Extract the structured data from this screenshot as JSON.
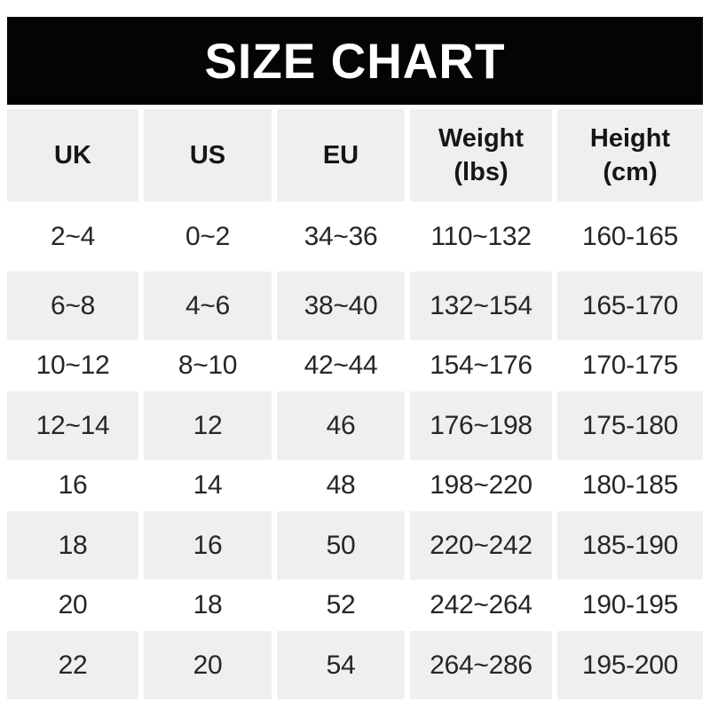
{
  "title": "SIZE CHART",
  "colors": {
    "banner_bg": "#040404",
    "banner_text": "#ffffff",
    "row_alt_bg": "#f0efee",
    "data_text": "#262626",
    "header_text": "#161616",
    "page_bg": "#ffffff"
  },
  "chart_data": {
    "type": "table",
    "title": "SIZE CHART",
    "columns": [
      "UK",
      "US",
      "EU",
      "Weight (lbs)",
      "Height (cm)"
    ],
    "header": [
      {
        "line1": "UK",
        "line2": ""
      },
      {
        "line1": "US",
        "line2": ""
      },
      {
        "line1": "EU",
        "line2": ""
      },
      {
        "line1": "Weight",
        "line2": "(lbs)"
      },
      {
        "line1": "Height",
        "line2": "(cm)"
      }
    ],
    "rows": [
      [
        "2~4",
        "0~2",
        "34~36",
        "110~132",
        "160-165"
      ],
      [
        "6~8",
        "4~6",
        "38~40",
        "132~154",
        "165-170"
      ],
      [
        "10~12",
        "8~10",
        "42~44",
        "154~176",
        "170-175"
      ],
      [
        "12~14",
        "12",
        "46",
        "176~198",
        "175-180"
      ],
      [
        "16",
        "14",
        "48",
        "198~220",
        "180-185"
      ],
      [
        "18",
        "16",
        "50",
        "220~242",
        "185-190"
      ],
      [
        "20",
        "18",
        "52",
        "242~264",
        "190-195"
      ],
      [
        "22",
        "20",
        "54",
        "264~286",
        "195-200"
      ]
    ],
    "layout": {
      "alternating_row_shading": "rows 2,4,6,8 shaded light gray",
      "column_alignment": "center",
      "grid": "off"
    }
  }
}
